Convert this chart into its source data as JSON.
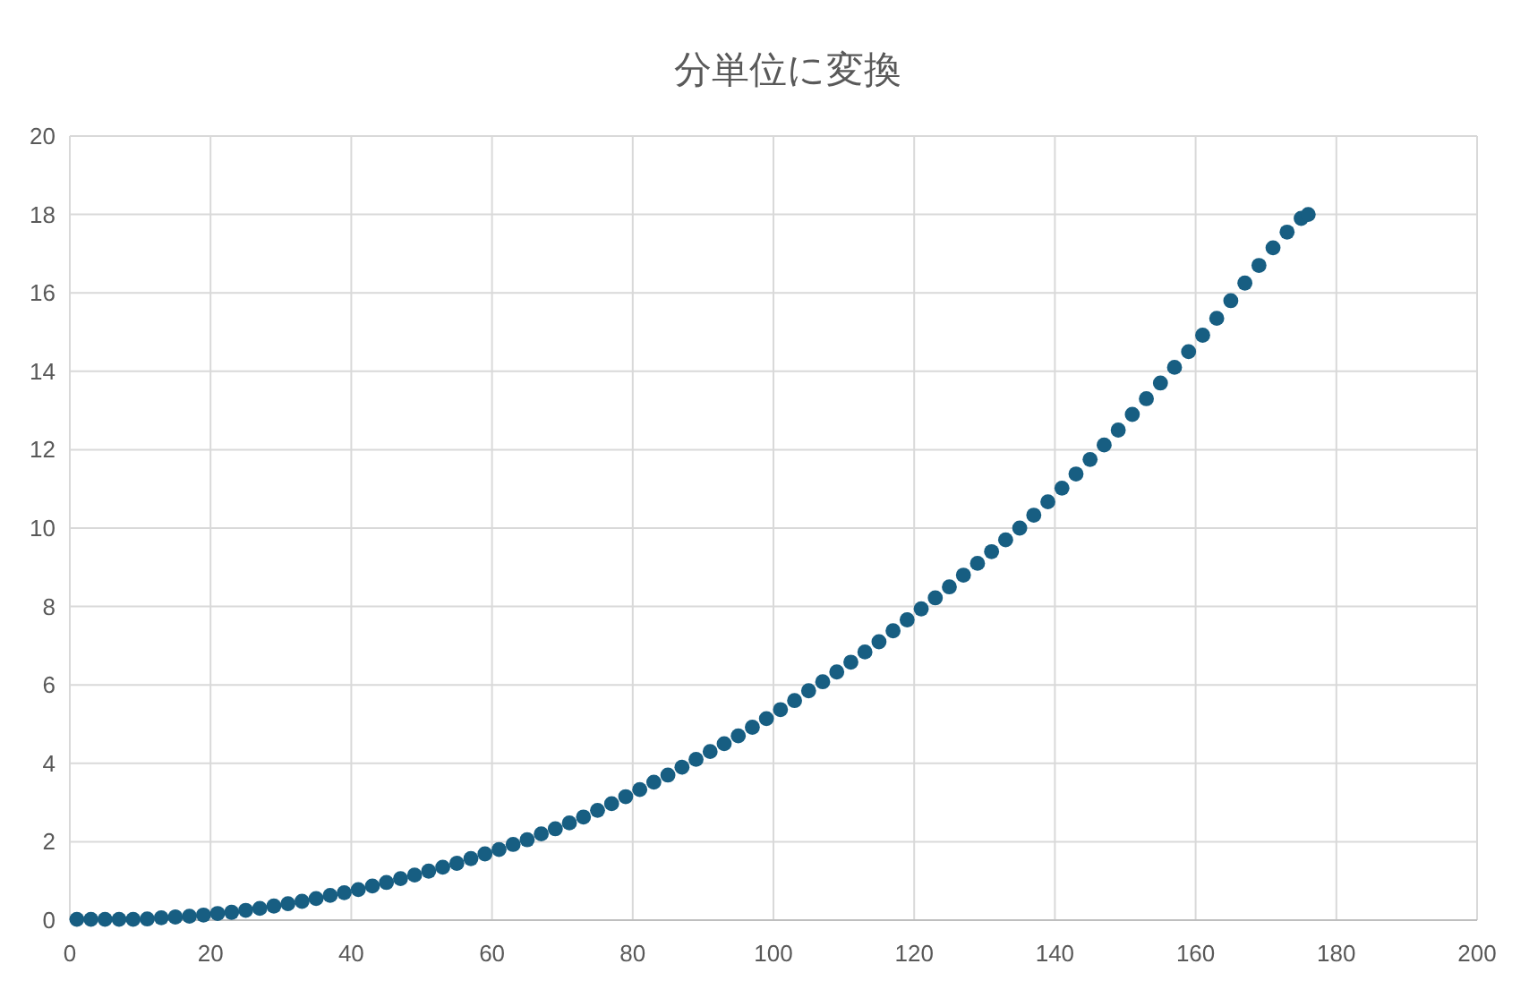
{
  "chart_data": {
    "type": "scatter",
    "title": "分単位に変換",
    "x": [
      1,
      3,
      5,
      7,
      9,
      11,
      13,
      15,
      17,
      19,
      21,
      23,
      25,
      27,
      29,
      31,
      33,
      35,
      37,
      39,
      41,
      43,
      45,
      47,
      49,
      51,
      53,
      55,
      57,
      59,
      61,
      63,
      65,
      67,
      69,
      71,
      73,
      75,
      77,
      79,
      81,
      83,
      85,
      87,
      89,
      91,
      93,
      95,
      97,
      99,
      101,
      103,
      105,
      107,
      109,
      111,
      113,
      115,
      117,
      119,
      121,
      123,
      125,
      127,
      129,
      131,
      133,
      135,
      137,
      139,
      141,
      143,
      145,
      147,
      149,
      151,
      153,
      155,
      157,
      159,
      161,
      163,
      165,
      167,
      169,
      171,
      173,
      175,
      176
    ],
    "series": [
      {
        "color": "#175e82",
        "values": [
          0.02,
          0.02,
          0.02,
          0.02,
          0.02,
          0.03,
          0.06,
          0.08,
          0.1,
          0.13,
          0.17,
          0.2,
          0.25,
          0.3,
          0.36,
          0.42,
          0.48,
          0.55,
          0.63,
          0.7,
          0.78,
          0.87,
          0.96,
          1.06,
          1.15,
          1.25,
          1.35,
          1.45,
          1.57,
          1.69,
          1.8,
          1.93,
          2.05,
          2.2,
          2.33,
          2.48,
          2.63,
          2.8,
          2.97,
          3.15,
          3.33,
          3.52,
          3.7,
          3.9,
          4.1,
          4.3,
          4.5,
          4.7,
          4.92,
          5.14,
          5.37,
          5.6,
          5.85,
          6.08,
          6.33,
          6.58,
          6.84,
          7.1,
          7.38,
          7.66,
          7.94,
          8.22,
          8.5,
          8.8,
          9.1,
          9.4,
          9.7,
          10.0,
          10.33,
          10.67,
          11.02,
          11.38,
          11.75,
          12.12,
          12.5,
          12.9,
          13.3,
          13.7,
          14.1,
          14.5,
          14.92,
          15.35,
          15.8,
          16.25,
          16.7,
          17.15,
          17.55,
          17.9,
          18.0
        ]
      }
    ],
    "xlim": [
      0,
      200
    ],
    "xticks": [
      0,
      20,
      40,
      60,
      80,
      100,
      120,
      140,
      160,
      180,
      200
    ],
    "ylim": [
      0,
      20
    ],
    "yticks": [
      0,
      2,
      4,
      6,
      8,
      10,
      12,
      14,
      16,
      18,
      20
    ],
    "grid": true,
    "marker": "circle"
  }
}
